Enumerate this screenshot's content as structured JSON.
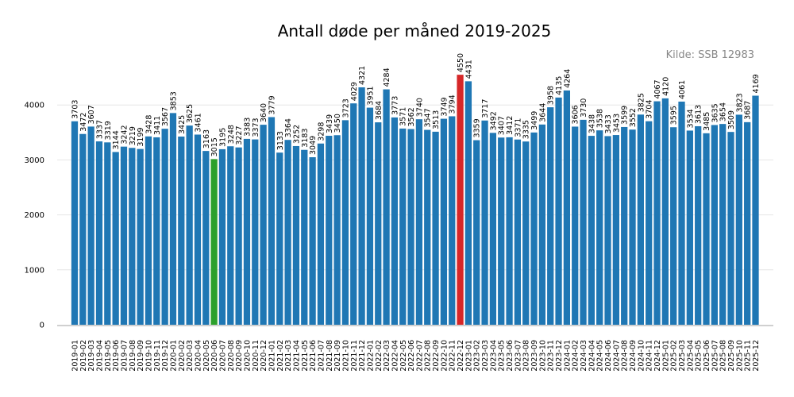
{
  "chart_data": {
    "type": "bar",
    "title": "Antall døde per måned 2019-2025",
    "source": "Kilde: SSB 12983",
    "xlabel": "",
    "ylabel": "",
    "ylim": [
      0,
      5000
    ],
    "yticks": [
      0,
      1000,
      2000,
      3000,
      4000
    ],
    "grid": true,
    "colors": {
      "default": "#1f77b4",
      "min": "#2ca02c",
      "max": "#d62728"
    },
    "highlight": {
      "min": "2020-06",
      "max": "2022-12"
    },
    "categories": [
      "2019-01",
      "2019-02",
      "2019-03",
      "2019-04",
      "2019-05",
      "2019-06",
      "2019-07",
      "2019-08",
      "2019-09",
      "2019-10",
      "2019-11",
      "2019-12",
      "2020-01",
      "2020-02",
      "2020-03",
      "2020-04",
      "2020-05",
      "2020-06",
      "2020-07",
      "2020-08",
      "2020-09",
      "2020-10",
      "2020-11",
      "2020-12",
      "2021-01",
      "2021-02",
      "2021-03",
      "2021-04",
      "2021-05",
      "2021-06",
      "2021-07",
      "2021-08",
      "2021-09",
      "2021-10",
      "2021-11",
      "2021-12",
      "2022-01",
      "2022-02",
      "2022-03",
      "2022-04",
      "2022-05",
      "2022-06",
      "2022-07",
      "2022-08",
      "2022-09",
      "2022-10",
      "2022-11",
      "2022-12",
      "2023-01",
      "2023-02",
      "2023-03",
      "2023-04",
      "2023-05",
      "2023-06",
      "2023-07",
      "2023-08",
      "2023-09",
      "2023-10",
      "2023-11",
      "2023-12",
      "2024-01",
      "2024-02",
      "2024-03",
      "2024-04",
      "2024-05",
      "2024-06",
      "2024-07",
      "2024-08",
      "2024-09",
      "2024-10",
      "2024-11",
      "2024-12",
      "2025-01",
      "2025-02",
      "2025-03",
      "2025-04",
      "2025-05",
      "2025-06",
      "2025-07",
      "2025-08",
      "2025-09",
      "2025-10",
      "2025-11",
      "2025-12"
    ],
    "values": [
      3703,
      3472,
      3607,
      3337,
      3319,
      3144,
      3242,
      3219,
      3199,
      3428,
      3411,
      3567,
      3853,
      3425,
      3625,
      3461,
      3163,
      3015,
      3195,
      3248,
      3227,
      3383,
      3373,
      3640,
      3779,
      3133,
      3364,
      3252,
      3183,
      3049,
      3298,
      3439,
      3450,
      3723,
      4029,
      4321,
      3951,
      3684,
      4284,
      3773,
      3571,
      3562,
      3740,
      3547,
      3513,
      3749,
      3794,
      4550,
      4431,
      3359,
      3717,
      3492,
      3407,
      3412,
      3371,
      3335,
      3499,
      3644,
      3958,
      4135,
      4264,
      3606,
      3730,
      3438,
      3538,
      3433,
      3453,
      3599,
      3552,
      3825,
      3704,
      4067,
      4120,
      3595,
      4061,
      3534,
      3613,
      3485,
      3635,
      3654,
      3509,
      3823,
      3687,
      4169
    ]
  }
}
